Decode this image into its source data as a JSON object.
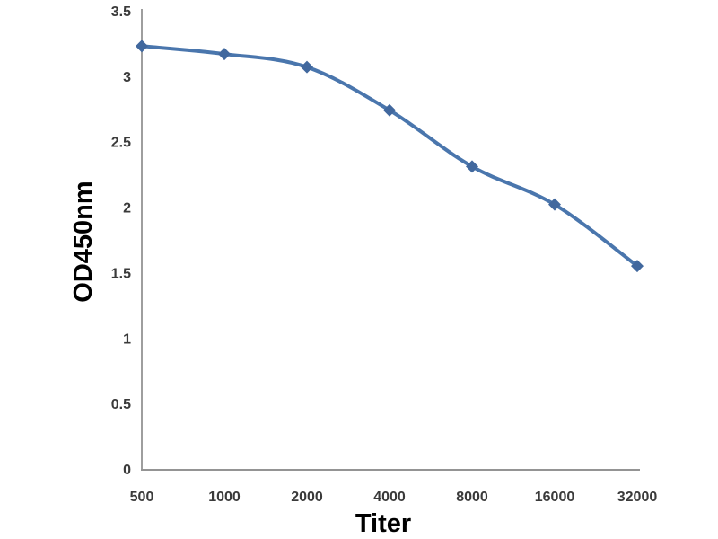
{
  "figure": {
    "background": "#ffffff"
  },
  "chart_data": {
    "type": "line",
    "title": "",
    "xlabel": "Titer",
    "ylabel": "OD450nm",
    "categories": [
      "500",
      "1000",
      "2000",
      "4000",
      "8000",
      "16000",
      "32000"
    ],
    "values": [
      3.23,
      3.17,
      3.07,
      2.74,
      2.31,
      2.02,
      1.55
    ],
    "ylim": [
      0,
      3.5
    ],
    "yticks": [
      "0",
      "0.5",
      "1",
      "1.5",
      "2",
      "2.5",
      "3",
      "3.5"
    ],
    "grid": false,
    "legend": "none",
    "smooth": true,
    "marker": "diamond",
    "colors": {
      "series_line": "#4a76ad",
      "marker_fill": "#41689e",
      "axis": "#949494",
      "tick_text": "#3a3a3a",
      "axis_title_text": "#000000",
      "background": "#ffffff"
    }
  }
}
